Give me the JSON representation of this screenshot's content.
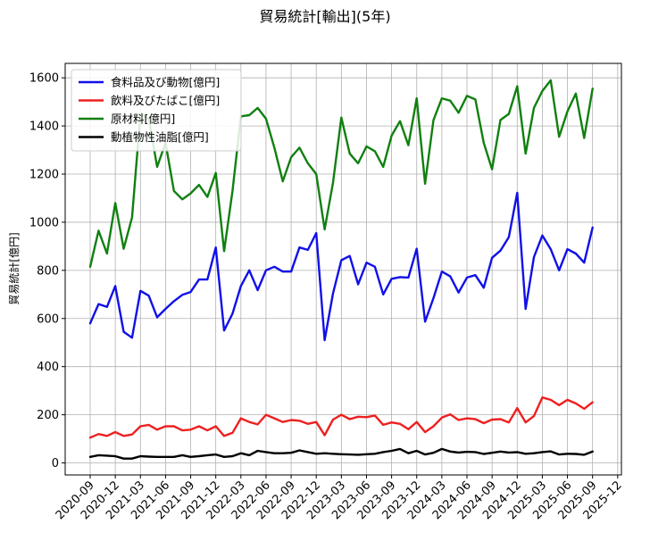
{
  "chart_data": {
    "type": "line",
    "title": "貿易統計[輸出](5年)",
    "xlabel": "",
    "ylabel": "貿易統計[億円]",
    "ylim": [
      -50,
      1660
    ],
    "yticks": [
      0,
      200,
      400,
      600,
      800,
      1000,
      1200,
      1400,
      1600
    ],
    "xticks": [
      "2020-09",
      "2020-12",
      "2021-03",
      "2021-06",
      "2021-09",
      "2021-12",
      "2022-03",
      "2022-06",
      "2022-09",
      "2022-12",
      "2023-03",
      "2023-06",
      "2023-09",
      "2023-12",
      "2024-03",
      "2024-06",
      "2024-09",
      "2024-12",
      "2025-03",
      "2025-06",
      "2025-09",
      "2025-12"
    ],
    "grid": true,
    "legend": "top-left",
    "x_start": "2020-09",
    "series": [
      {
        "name": "食料品及び動物[億円]",
        "color": "#1010e8",
        "values": [
          580,
          660,
          648,
          735,
          545,
          520,
          715,
          695,
          605,
          640,
          672,
          698,
          710,
          762,
          762,
          895,
          550,
          620,
          735,
          800,
          718,
          800,
          815,
          795,
          795,
          895,
          885,
          955,
          510,
          705,
          842,
          860,
          742,
          832,
          815,
          700,
          765,
          772,
          770,
          890,
          587,
          685,
          795,
          775,
          708,
          770,
          780,
          728,
          852,
          882,
          938,
          1122,
          640,
          855,
          945,
          888,
          800,
          888,
          870,
          832,
          978
        ]
      },
      {
        "name": "飲料及びたばこ[億円]",
        "color": "#ee2020",
        "values": [
          105,
          120,
          112,
          128,
          112,
          118,
          152,
          158,
          138,
          152,
          152,
          135,
          138,
          152,
          135,
          152,
          112,
          125,
          185,
          170,
          160,
          200,
          185,
          170,
          178,
          175,
          162,
          170,
          115,
          180,
          200,
          182,
          192,
          190,
          197,
          158,
          168,
          162,
          140,
          170,
          128,
          152,
          188,
          202,
          178,
          185,
          182,
          165,
          180,
          182,
          168,
          228,
          168,
          195,
          272,
          262,
          240,
          262,
          247,
          225,
          252
        ]
      },
      {
        "name": "原材料[億円]",
        "color": "#108010",
        "values": [
          815,
          965,
          870,
          1080,
          890,
          1020,
          1450,
          1430,
          1230,
          1330,
          1130,
          1095,
          1120,
          1155,
          1105,
          1205,
          880,
          1130,
          1440,
          1445,
          1475,
          1430,
          1310,
          1170,
          1270,
          1310,
          1245,
          1200,
          970,
          1165,
          1435,
          1285,
          1245,
          1315,
          1295,
          1230,
          1360,
          1420,
          1320,
          1515,
          1160,
          1425,
          1515,
          1505,
          1455,
          1525,
          1510,
          1330,
          1220,
          1425,
          1450,
          1565,
          1285,
          1475,
          1545,
          1590,
          1355,
          1460,
          1535,
          1350,
          1555
        ]
      },
      {
        "name": "動植物性油脂[億円]",
        "color": "#000000",
        "values": [
          25,
          32,
          30,
          28,
          18,
          18,
          28,
          26,
          25,
          25,
          25,
          32,
          25,
          28,
          32,
          35,
          25,
          28,
          40,
          32,
          50,
          45,
          40,
          40,
          42,
          52,
          45,
          38,
          40,
          38,
          36,
          35,
          34,
          36,
          38,
          45,
          50,
          58,
          40,
          50,
          35,
          42,
          58,
          47,
          43,
          46,
          45,
          37,
          42,
          47,
          43,
          45,
          38,
          40,
          45,
          48,
          35,
          38,
          37,
          34,
          47
        ]
      }
    ]
  }
}
